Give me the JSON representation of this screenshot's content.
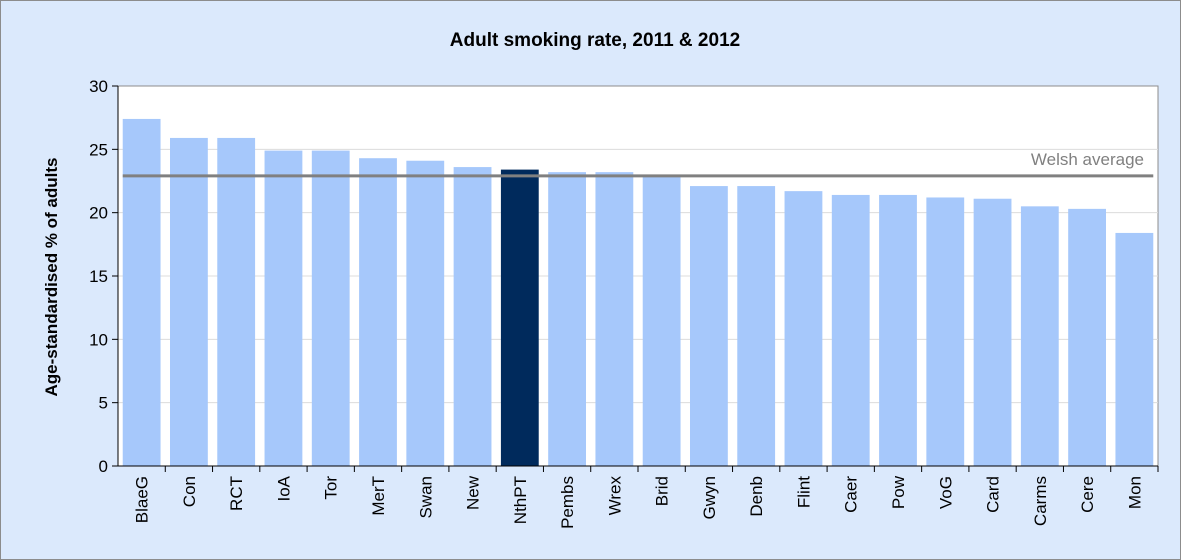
{
  "chart_data": {
    "type": "bar",
    "title": "Adult smoking rate, 2011  & 2012",
    "ylabel": "Age-standardised % of adults",
    "xlabel": "",
    "ylim": [
      0,
      30
    ],
    "yticks": [
      0,
      5,
      10,
      15,
      20,
      25,
      30
    ],
    "grid": true,
    "categories": [
      "BlaeG",
      "Con",
      "RCT",
      "IoA",
      "Tor",
      "MerT",
      "Swan",
      "New",
      "NthPT",
      "Pembs",
      "Wrex",
      "Brid",
      "Gwyn",
      "Denb",
      "Flint",
      "Caer",
      "Pow",
      "VoG",
      "Card",
      "Carms",
      "Cere",
      "Mon"
    ],
    "values": [
      27.4,
      25.9,
      25.9,
      24.9,
      24.9,
      24.3,
      24.1,
      23.6,
      23.4,
      23.2,
      23.2,
      22.9,
      22.1,
      22.1,
      21.7,
      21.4,
      21.4,
      21.2,
      21.1,
      20.5,
      20.3,
      18.4
    ],
    "highlight_category": "NthPT",
    "reference_line": {
      "label": "Welsh average",
      "value": 22.9
    },
    "colors": {
      "bar": "#a6c8fb",
      "highlight": "#002a5c",
      "reference": "#808080",
      "plot_bg": "#ffffff",
      "frame_bg": "#dbe9fc"
    }
  }
}
